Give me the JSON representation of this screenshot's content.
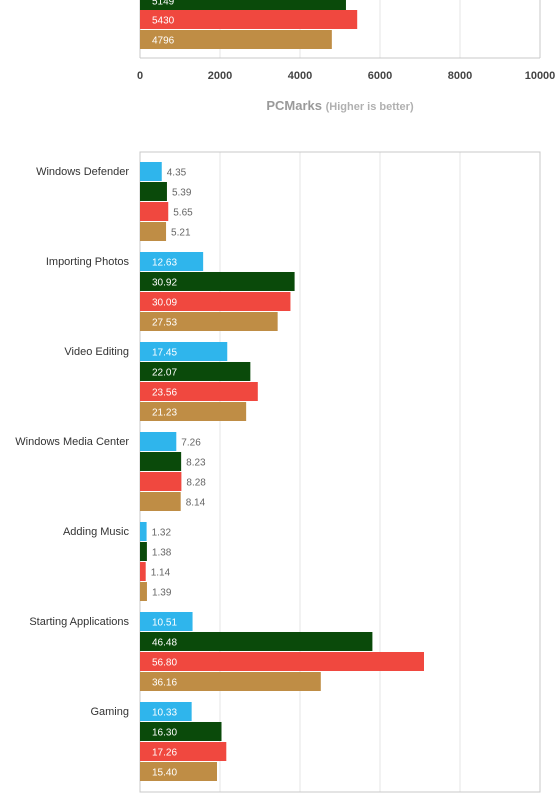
{
  "colors": {
    "blue": "#2fb5ec",
    "green": "#0a4a0a",
    "red": "#f0483f",
    "tan": "#bf8d45",
    "grid": "#e6e6e6",
    "frame": "#c8c8c8"
  },
  "chart_data": [
    {
      "type": "bar",
      "orientation": "horizontal",
      "partial": true,
      "title": "",
      "xlabel": "PCMarks",
      "xlabel_note": "(Higher is better)",
      "xlim": [
        0,
        10000
      ],
      "xticks": [
        "0",
        "2000",
        "4000",
        "6000",
        "8000",
        "10000"
      ],
      "grid": true,
      "bars": [
        {
          "label": "5149",
          "value": 5149,
          "color": "green"
        },
        {
          "label": "5430",
          "value": 5430,
          "color": "red"
        },
        {
          "label": "4796",
          "value": 4796,
          "color": "tan"
        }
      ]
    },
    {
      "type": "bar",
      "orientation": "horizontal",
      "title": "",
      "xlim": [
        0,
        80
      ],
      "grid": true,
      "series_colors": [
        "blue",
        "green",
        "red",
        "tan"
      ],
      "categories": [
        "Windows Defender",
        "Importing Photos",
        "Video Editing",
        "Windows Media Center",
        "Adding Music",
        "Starting Applications",
        "Gaming"
      ],
      "values": [
        [
          4.35,
          5.39,
          5.65,
          5.21
        ],
        [
          12.63,
          30.92,
          30.09,
          27.53
        ],
        [
          17.45,
          22.07,
          23.56,
          21.23
        ],
        [
          7.26,
          8.23,
          8.28,
          8.14
        ],
        [
          1.32,
          1.38,
          1.14,
          1.39
        ],
        [
          10.51,
          46.48,
          56.8,
          36.16
        ],
        [
          10.33,
          16.3,
          17.26,
          15.4
        ]
      ],
      "labels": [
        [
          "4.35",
          "5.39",
          "5.65",
          "5.21"
        ],
        [
          "12.63",
          "30.92",
          "30.09",
          "27.53"
        ],
        [
          "17.45",
          "22.07",
          "23.56",
          "21.23"
        ],
        [
          "7.26",
          "8.23",
          "8.28",
          "8.14"
        ],
        [
          "1.32",
          "1.38",
          "1.14",
          "1.39"
        ],
        [
          "10.51",
          "46.48",
          "56.80",
          "36.16"
        ],
        [
          "10.33",
          "16.30",
          "17.26",
          "15.40"
        ]
      ]
    }
  ]
}
